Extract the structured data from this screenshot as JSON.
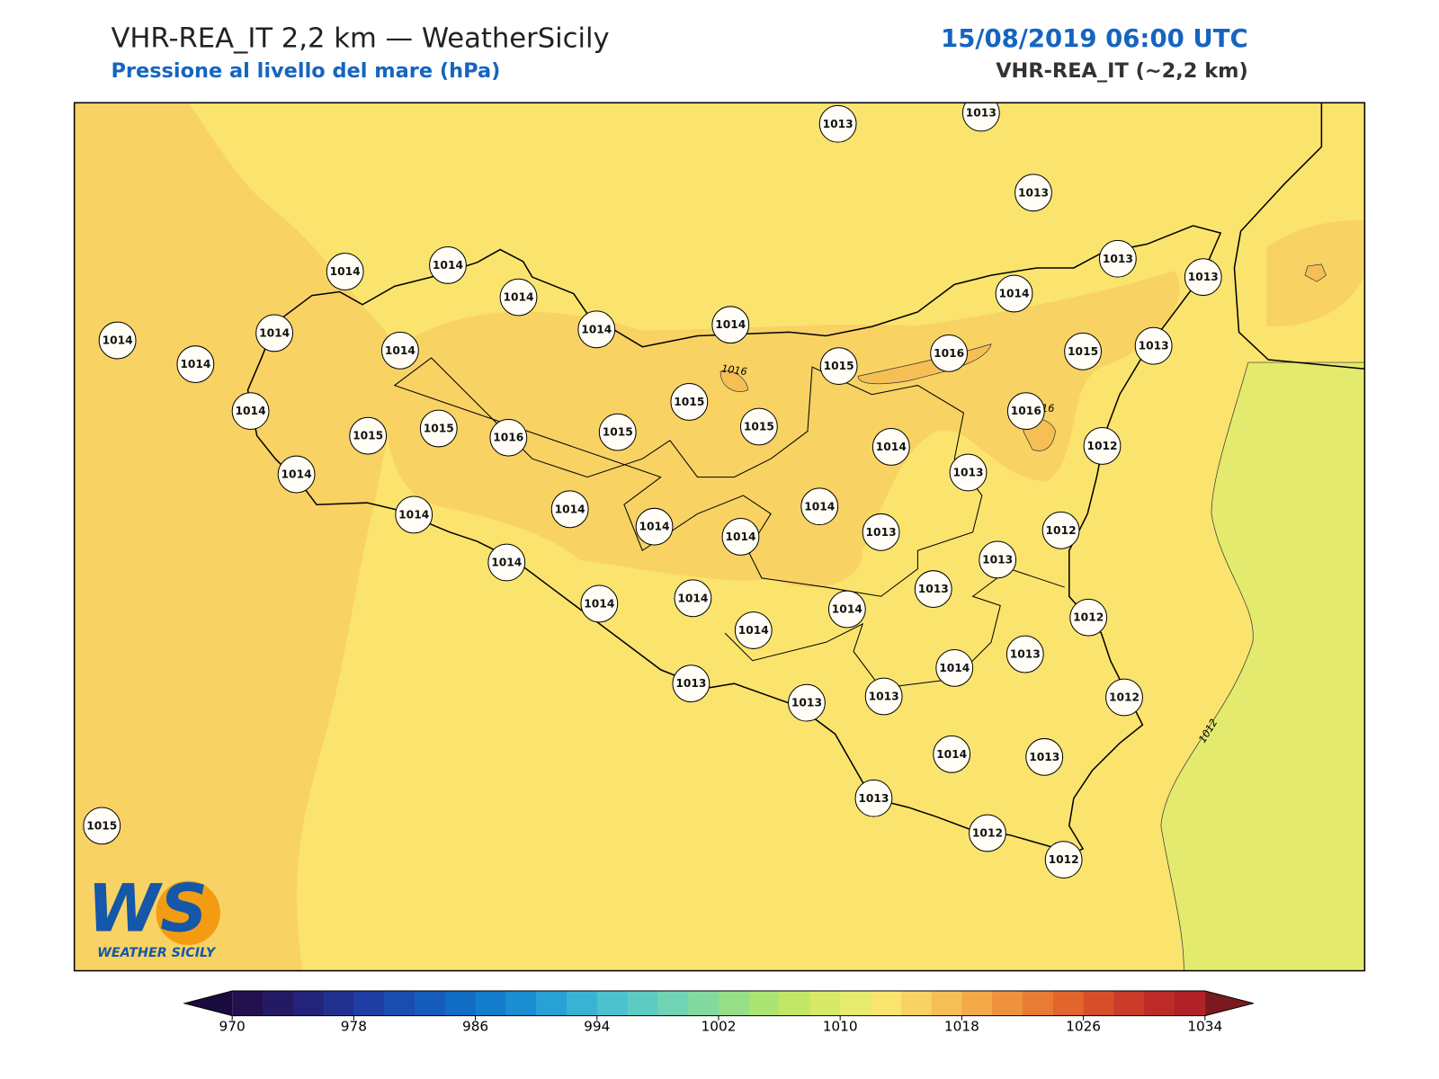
{
  "header": {
    "title": "VHR-REA_IT 2,2 km — WeatherSicily",
    "subtitle": "Pressione al livello del mare (hPa)",
    "datetime": "15/08/2019 06:00 UTC",
    "model": "VHR-REA_IT (~2,2 km)"
  },
  "stations": [
    1013,
    1013,
    1013,
    1014,
    1014,
    1014,
    1014,
    1014,
    1014,
    1013,
    1013,
    1014,
    1014,
    1014,
    1014,
    1015,
    1016,
    1015,
    1013,
    1014,
    1015,
    1015,
    1016,
    1015,
    1015,
    1015,
    1016,
    1014,
    1013,
    1012,
    1014,
    1014,
    1014,
    1014,
    1014,
    1014,
    1013,
    1012,
    1013,
    1014,
    1014,
    1014,
    1013,
    1014,
    1014,
    1012,
    1013,
    1014,
    1013,
    1013,
    1013,
    1012,
    1014,
    1013,
    1013,
    1012,
    1012,
    1015
  ],
  "contour_labels": [
    "1016",
    "16",
    "1012"
  ],
  "logo": {
    "mark": "WS",
    "name": "WEATHER SICILY"
  },
  "colorbar": {
    "lim": [
      970,
      1034
    ],
    "ticks": [
      970,
      978,
      986,
      994,
      1002,
      1010,
      1018,
      1026,
      1034
    ],
    "under_color": "#1a0c3e",
    "over_color": "#7a1a1c",
    "colors": [
      "#23104f",
      "#241a63",
      "#24237a",
      "#223090",
      "#1f3ea3",
      "#1a4db0",
      "#155cbb",
      "#116cc4",
      "#137dcc",
      "#1a8ed1",
      "#28a1d4",
      "#39b3d4",
      "#4cc2cf",
      "#5ecbc2",
      "#6fd4b3",
      "#82da9f",
      "#96df88",
      "#abe472",
      "#c2e766",
      "#d6ea67",
      "#e6ec6d",
      "#fbe46e",
      "#f9d264",
      "#f6bf55",
      "#f3a948",
      "#ee923d",
      "#e97c34",
      "#e2652d",
      "#d74f2a",
      "#ca3b29",
      "#bd2b28",
      "#b02227"
    ]
  }
}
